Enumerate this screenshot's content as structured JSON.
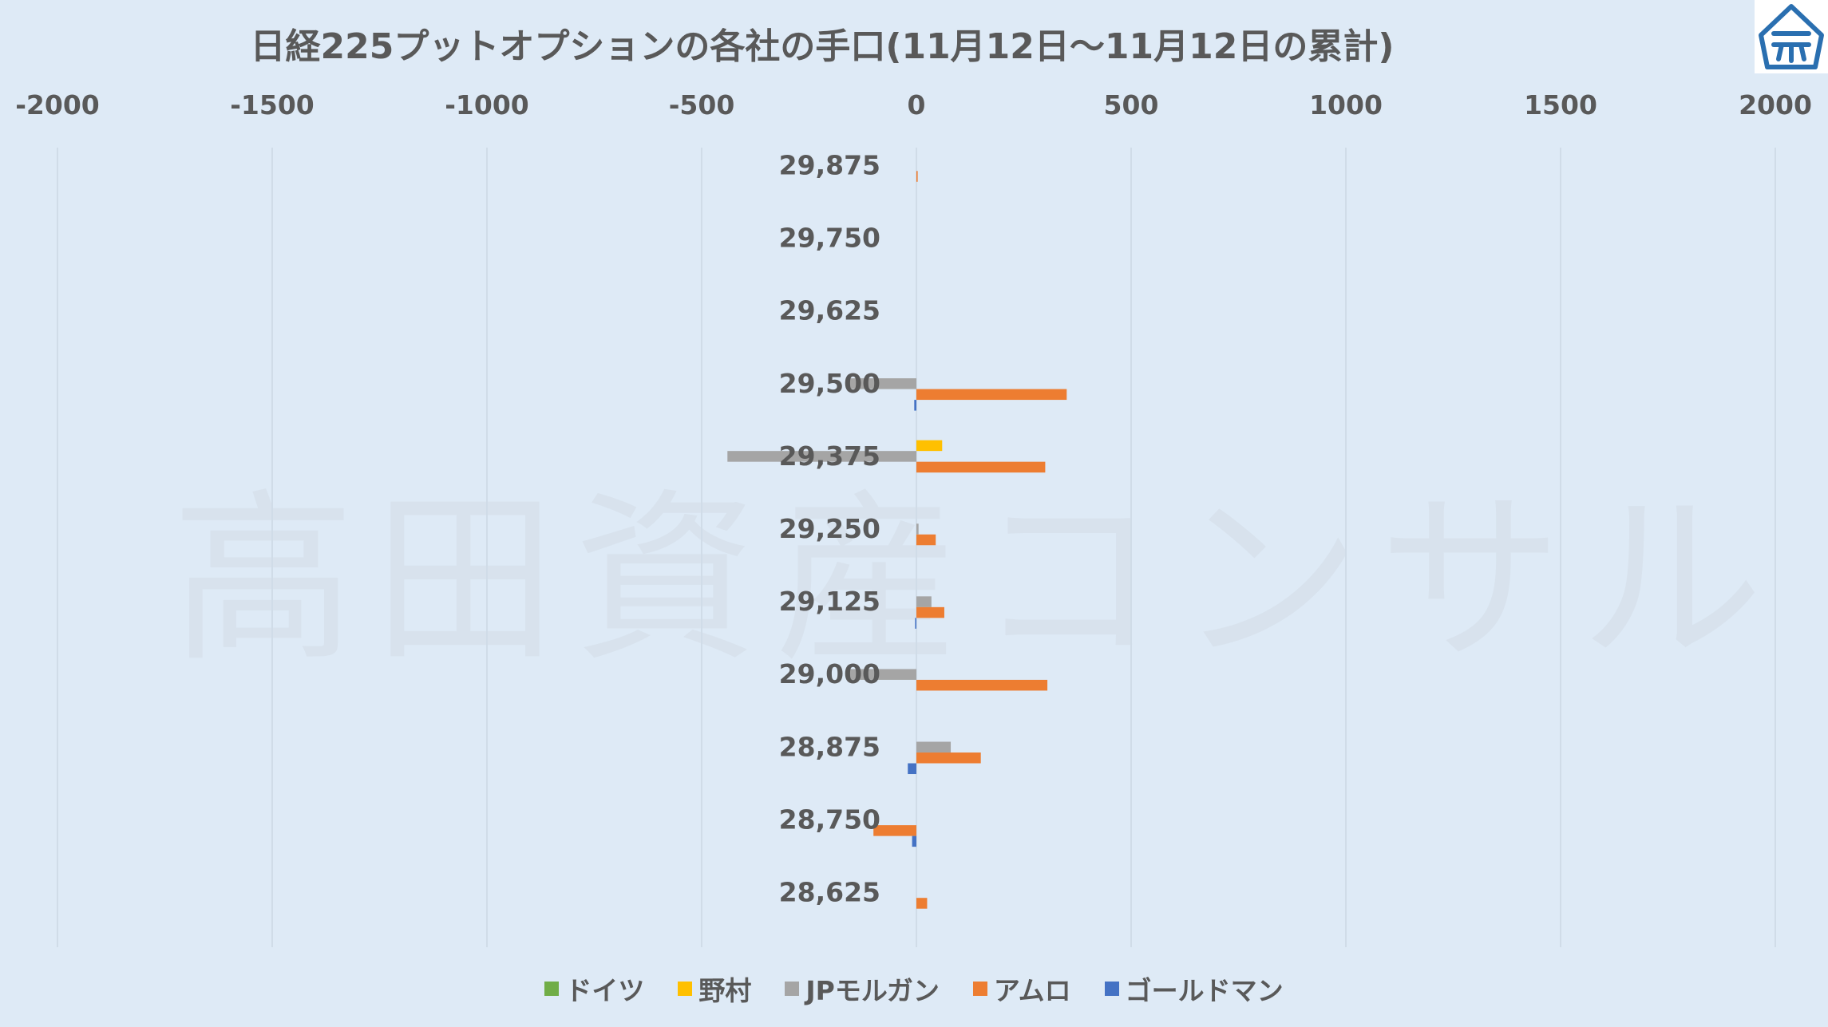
{
  "chart_data": {
    "type": "bar",
    "orientation": "horizontal",
    "title": "日経225プットオプションの各社の手口(11月12日～11月12日の累計)",
    "xlim": [
      -2000,
      2000
    ],
    "xticks": [
      "-2000",
      "-1500",
      "-1000",
      "-500",
      "0",
      "500",
      "1000",
      "1500",
      "2000"
    ],
    "categories": [
      "29,875",
      "29,750",
      "29,625",
      "29,500",
      "29,375",
      "29,250",
      "29,125",
      "29,000",
      "28,875",
      "28,750",
      "28,625"
    ],
    "series": [
      {
        "name": "ドイツ",
        "color": "#70ad47",
        "values": [
          0,
          0,
          0,
          0,
          0,
          0,
          0,
          0,
          0,
          0,
          0
        ]
      },
      {
        "name": "野村",
        "color": "#ffc000",
        "values": [
          0,
          0,
          0,
          0,
          60,
          0,
          0,
          0,
          0,
          0,
          0
        ]
      },
      {
        "name": "JPモルガン",
        "color": "#a5a5a5",
        "values": [
          0,
          0,
          0,
          -160,
          -440,
          5,
          35,
          -160,
          80,
          0,
          0
        ]
      },
      {
        "name": "アムロ",
        "color": "#ed7d31",
        "values": [
          3,
          0,
          0,
          350,
          300,
          45,
          65,
          305,
          150,
          -100,
          25
        ]
      },
      {
        "name": "ゴールドマン",
        "color": "#4472c4",
        "values": [
          0,
          0,
          0,
          -5,
          0,
          0,
          -3,
          0,
          -20,
          -10,
          0
        ]
      }
    ],
    "grid": "vertical",
    "legend": "bottom"
  },
  "watermark": "高田資産コンサル",
  "colors": {
    "background": "#deeaf6",
    "text": "#595959",
    "grid": "#d0dce8",
    "logo": "#2a6fb0"
  },
  "icons": {
    "logo": "building-logo-icon"
  }
}
